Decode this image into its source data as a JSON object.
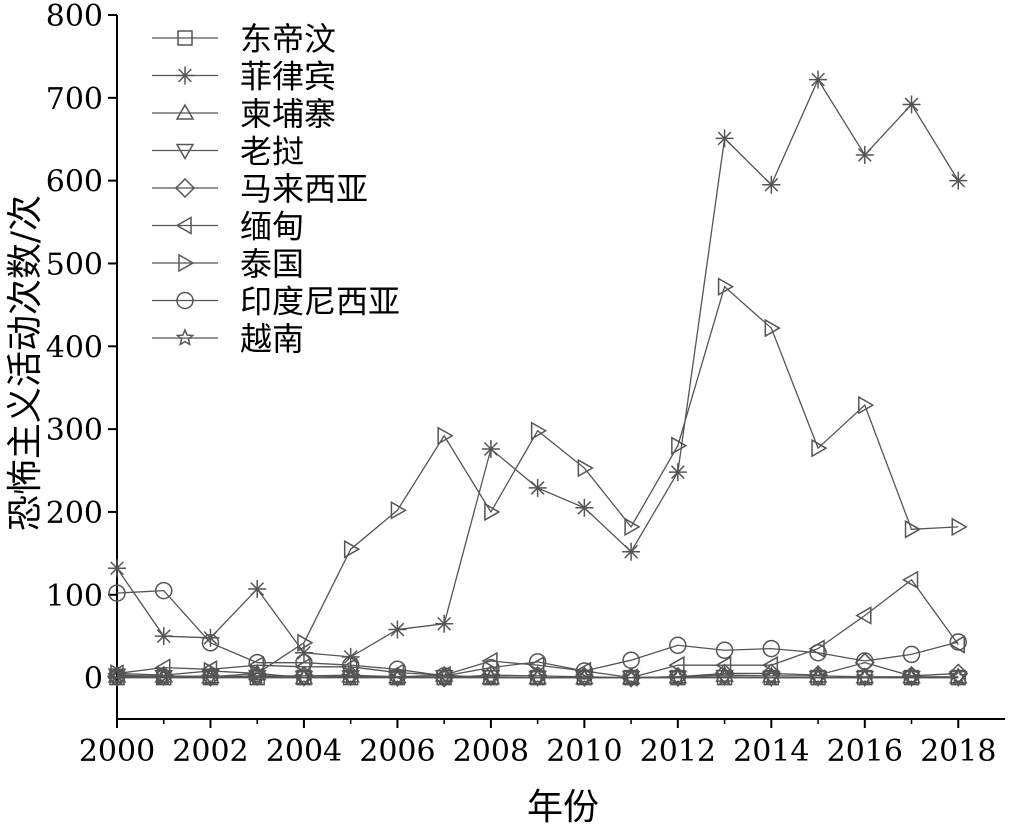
{
  "chart_data": {
    "type": "line",
    "xlabel": "年份",
    "ylabel": "恐怖主义活动次数/次",
    "xlim": [
      2000,
      2019
    ],
    "ylim": [
      -50,
      800
    ],
    "xticks": [
      2000,
      2002,
      2004,
      2006,
      2008,
      2010,
      2012,
      2014,
      2016,
      2018
    ],
    "yticks": [
      0,
      100,
      200,
      300,
      400,
      500,
      600,
      700,
      800
    ],
    "legend_position": "top-left",
    "x": [
      2000,
      2001,
      2002,
      2003,
      2004,
      2005,
      2006,
      2007,
      2008,
      2009,
      2010,
      2011,
      2012,
      2013,
      2014,
      2015,
      2016,
      2017,
      2018
    ],
    "series": [
      {
        "name": "东帝汶",
        "marker": "square",
        "values": [
          0,
          0,
          0,
          0,
          0,
          0,
          0,
          0,
          0,
          0,
          0,
          0,
          0,
          0,
          0,
          0,
          0,
          0,
          0
        ]
      },
      {
        "name": "菲律宾",
        "marker": "asterisk",
        "values": [
          132,
          50,
          48,
          107,
          30,
          25,
          58,
          65,
          276,
          229,
          205,
          152,
          248,
          651,
          595,
          722,
          631,
          692,
          600
        ]
      },
      {
        "name": "柬埔寨",
        "marker": "triangle-up",
        "values": [
          2,
          2,
          1,
          5,
          0,
          2,
          1,
          3,
          0,
          0,
          0,
          0,
          1,
          3,
          2,
          2,
          1,
          1,
          1
        ]
      },
      {
        "name": "老挝",
        "marker": "triangle-down",
        "values": [
          3,
          1,
          2,
          1,
          0,
          1,
          0,
          1,
          1,
          0,
          0,
          0,
          0,
          1,
          0,
          0,
          0,
          0,
          0
        ]
      },
      {
        "name": "马来西亚",
        "marker": "diamond",
        "values": [
          1,
          2,
          1,
          2,
          2,
          3,
          1,
          0,
          3,
          2,
          1,
          0,
          1,
          5,
          5,
          3,
          18,
          2,
          5
        ]
      },
      {
        "name": "缅甸",
        "marker": "triangle-left",
        "values": [
          5,
          12,
          10,
          15,
          13,
          13,
          6,
          3,
          20,
          15,
          8,
          0,
          15,
          15,
          15,
          35,
          75,
          118,
          40
        ]
      },
      {
        "name": "泰国",
        "marker": "triangle-right",
        "values": [
          5,
          3,
          8,
          5,
          42,
          155,
          202,
          292,
          200,
          298,
          253,
          182,
          280,
          472,
          422,
          277,
          329,
          179,
          182
        ]
      },
      {
        "name": "印度尼西亚",
        "marker": "circle",
        "values": [
          102,
          105,
          42,
          18,
          18,
          15,
          10,
          2,
          12,
          19,
          8,
          21,
          39,
          33,
          35,
          30,
          20,
          28,
          43
        ]
      },
      {
        "name": "越南",
        "marker": "star",
        "values": [
          0,
          0,
          0,
          0,
          0,
          0,
          0,
          0,
          0,
          0,
          0,
          0,
          0,
          0,
          0,
          0,
          0,
          0,
          0
        ]
      }
    ]
  }
}
